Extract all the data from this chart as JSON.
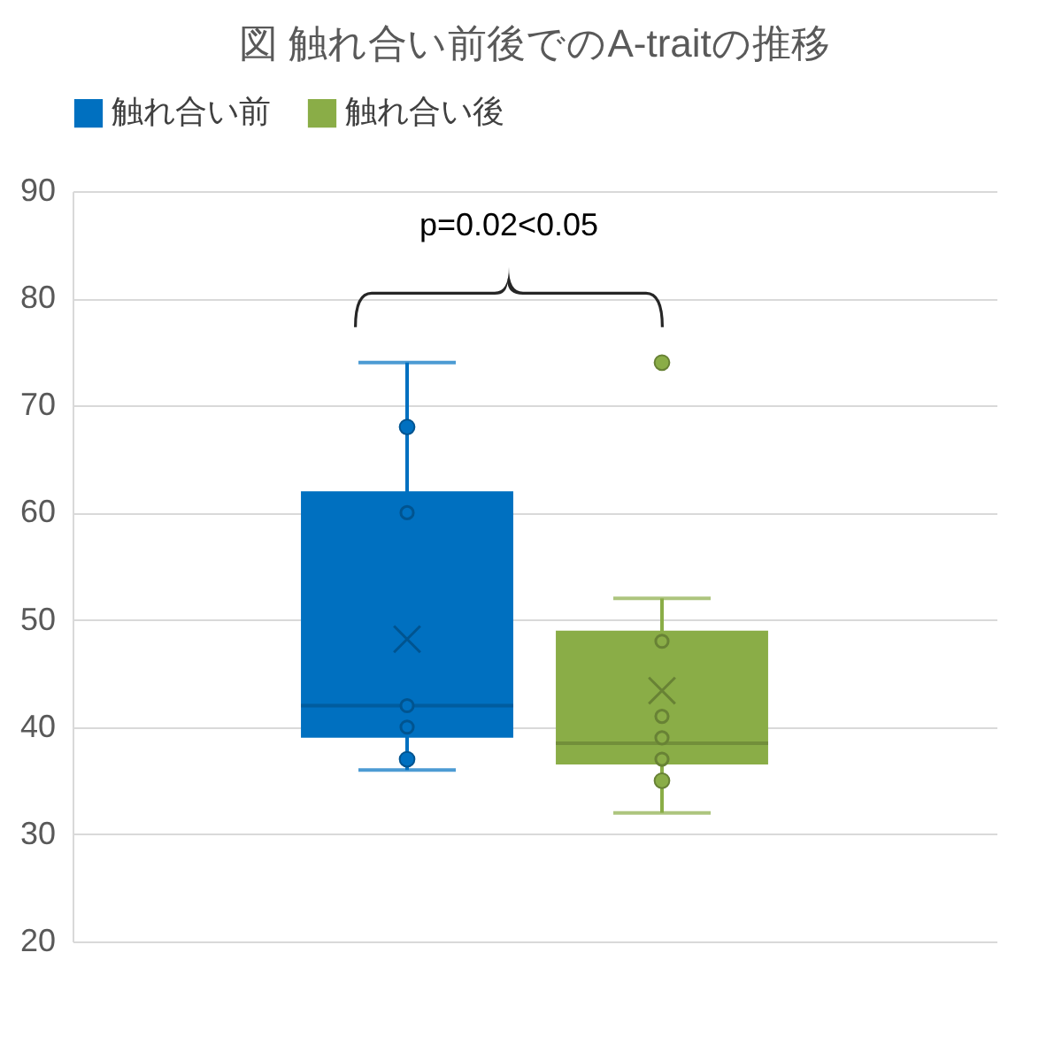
{
  "chart_data": {
    "type": "box",
    "title": "図 触れ合い前後でのA-traitの推移",
    "categories": [
      null
    ],
    "series": [
      {
        "name": "触れ合い前",
        "color": "#0070c0",
        "boxes": [
          {
            "low": 36,
            "q1": 39,
            "median": 42,
            "q3": 62,
            "high": 74,
            "mean": 48.2,
            "outliers": [
              68,
              60,
              42,
              40,
              37
            ]
          }
        ]
      },
      {
        "name": "触れ合い後",
        "color": "#8aad47",
        "boxes": [
          {
            "low": 32,
            "q1": 36.5,
            "median": 38.5,
            "q3": 49,
            "high": 52,
            "mean": 43.4,
            "outliers": [
              74,
              48,
              41,
              39,
              37,
              35
            ]
          }
        ]
      }
    ],
    "ylim": [
      20,
      90
    ],
    "yticks": [
      20,
      30,
      40,
      50,
      60,
      70,
      80,
      90
    ],
    "grid": "y",
    "legend": "top",
    "marker": "circle",
    "annotations": [
      "p=0.02<0.05"
    ]
  }
}
